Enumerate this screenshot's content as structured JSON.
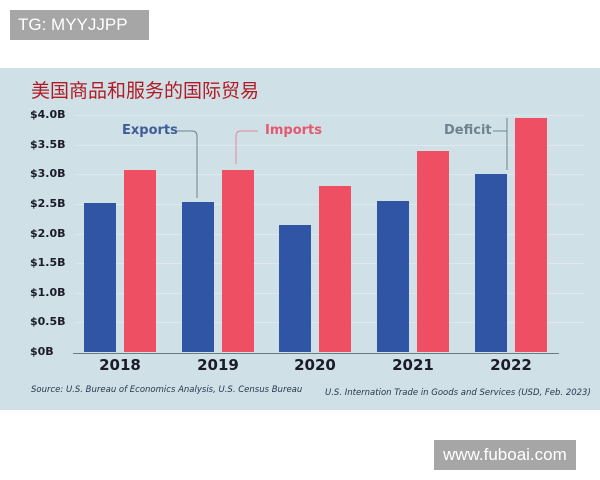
{
  "watermarks": {
    "top": "TG: MYYJJPP",
    "bottom": "www.fuboai.com"
  },
  "chart": {
    "title": "美国商品和服务的国际贸易",
    "y_ticks": [
      "$4.0B",
      "$3.5B",
      "$3.0B",
      "$2.5B",
      "$2.0B",
      "$1.5B",
      "$1.0B",
      "$0.5B",
      "$0B"
    ],
    "x_labels": [
      "2018",
      "2019",
      "2020",
      "2021",
      "2022"
    ],
    "annotations": {
      "exports": "Exports",
      "imports": "Imports",
      "deficit": "Deficit"
    },
    "source": "Source: U.S. Bureau of Economics Analysis, U.S. Census Bureau",
    "footnote": "U.S. Internation Trade in Goods and Services (USD, Feb. 2023)",
    "colors": {
      "exports": "#2f55a4",
      "imports": "#ef4f63",
      "title": "#b11b25",
      "background": "#cfe0e7"
    }
  },
  "chart_data": {
    "type": "bar",
    "title": "美国商品和服务的国际贸易",
    "xlabel": "",
    "ylabel": "",
    "categories": [
      "2018",
      "2019",
      "2020",
      "2021",
      "2022"
    ],
    "series": [
      {
        "name": "Exports",
        "color": "#2f55a4",
        "values": [
          2.51,
          2.53,
          2.14,
          2.55,
          3.0
        ]
      },
      {
        "name": "Imports",
        "color": "#ef4f63",
        "values": [
          3.08,
          3.08,
          2.8,
          3.39,
          3.95
        ]
      }
    ],
    "annotations": [
      "Exports",
      "Imports",
      "Deficit"
    ],
    "units": "USD billions",
    "ylim": [
      0,
      4.0
    ],
    "y_ticks": [
      0,
      0.5,
      1.0,
      1.5,
      2.0,
      2.5,
      3.0,
      3.5,
      4.0
    ],
    "grid": true,
    "legend": "inline annotations",
    "source": "Source: U.S. Bureau of Economics Analysis, U.S. Census Bureau",
    "footnote": "U.S. Internation Trade in Goods and Services (USD, Feb. 2023)"
  }
}
